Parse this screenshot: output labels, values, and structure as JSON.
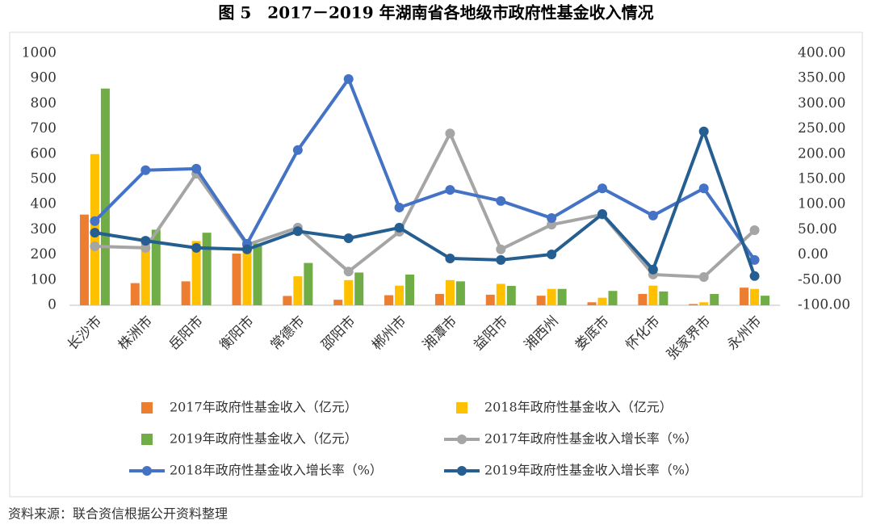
{
  "chart_data": {
    "type": "bar-line",
    "title": "图 5　2017－2019 年湖南省各地级市政府性基金收入情况",
    "source": "资料来源：联合资信根据公开资料整理",
    "categories": [
      "长沙市",
      "株洲市",
      "岳阳市",
      "衡阳市",
      "常德市",
      "邵阳市",
      "郴州市",
      "湘潭市",
      "益阳市",
      "湘西州",
      "娄底市",
      "怀化市",
      "张家界市",
      "永州市"
    ],
    "series": [
      {
        "name": "2017年政府性基金收入（亿元）",
        "kind": "bar",
        "color": "#ed7d31",
        "values": [
          360,
          88,
          95,
          205,
          37,
          22,
          40,
          45,
          42,
          38,
          12,
          45,
          5,
          70
        ]
      },
      {
        "name": "2018年政府性基金收入（亿元）",
        "kind": "bar",
        "color": "#ffc000",
        "values": [
          600,
          270,
          255,
          240,
          115,
          100,
          78,
          100,
          85,
          65,
          30,
          78,
          12,
          65
        ]
      },
      {
        "name": "2019年政府性基金收入（亿元）",
        "kind": "bar",
        "color": "#70ad47",
        "values": [
          860,
          300,
          288,
          245,
          168,
          130,
          122,
          95,
          77,
          65,
          57,
          55,
          45,
          38
        ]
      },
      {
        "name": "2017年政府性基金收入增长率（%）",
        "kind": "line",
        "axis": "y2",
        "color": "#a5a5a5",
        "values": [
          17,
          14,
          161,
          20,
          54,
          -33,
          46,
          241,
          11,
          60,
          80,
          -39,
          -44,
          49
        ]
      },
      {
        "name": "2018年政府性基金收入增长率（%）",
        "kind": "line",
        "axis": "y2",
        "color": "#4472c4",
        "values": [
          67,
          168,
          171,
          22,
          208,
          349,
          94,
          129,
          107,
          73,
          132,
          78,
          132,
          -10
        ]
      },
      {
        "name": "2019年政府性基金收入增长率（%）",
        "kind": "line",
        "axis": "y2",
        "color": "#255e91",
        "values": [
          44,
          28,
          14,
          11,
          47,
          33,
          54,
          -7,
          -10,
          1,
          81,
          -29,
          245,
          -42
        ]
      }
    ],
    "ylim": [
      0,
      1000
    ],
    "yticks": [
      0,
      100,
      200,
      300,
      400,
      500,
      600,
      700,
      800,
      900,
      1000
    ],
    "y2lim": [
      -100,
      400
    ],
    "y2ticks": [
      {
        "value": -100,
        "label": "-100.00"
      },
      {
        "value": -50,
        "label": "-50.00"
      },
      {
        "value": 0,
        "label": "0.00"
      },
      {
        "value": 50,
        "label": "50.00"
      },
      {
        "value": 100,
        "label": "100.00"
      },
      {
        "value": 150,
        "label": "150.00"
      },
      {
        "value": 200,
        "label": "200.00"
      },
      {
        "value": 250,
        "label": "250.00"
      },
      {
        "value": 300,
        "label": "300.00"
      },
      {
        "value": 350,
        "label": "350.00"
      },
      {
        "value": 400,
        "label": "400.00"
      }
    ],
    "grid": false
  }
}
